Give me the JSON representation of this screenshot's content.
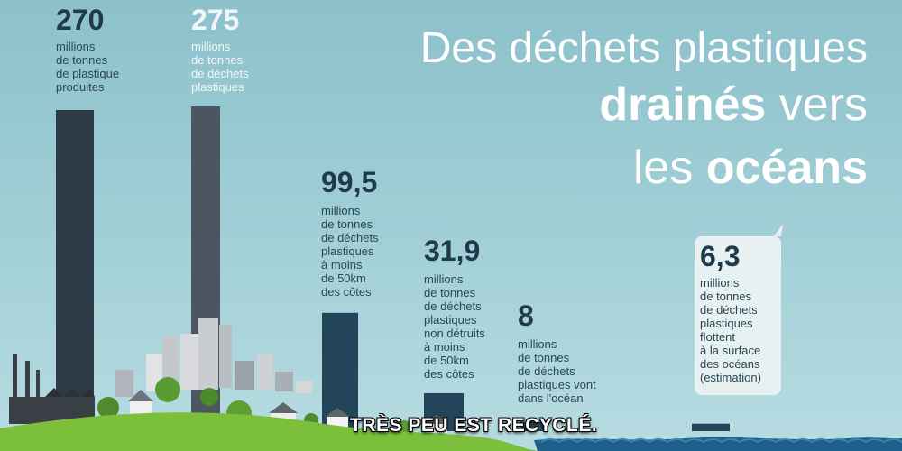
{
  "title": {
    "line1": "Des déchets plastiques",
    "line2_bold": "drainés",
    "line2_rest": " vers",
    "line3_rest": "les ",
    "line3_bold": "océans"
  },
  "caption": "TRÈS PEU EST RECYCLÉ.",
  "colors": {
    "sky_top": "#8fc3cc",
    "sky_bottom": "#b5dbe0",
    "bar_dark": "#2e3a45",
    "bar_mid": "#4b5660",
    "bar_navy": "#234559",
    "ocean": "#1e5f8c",
    "grass": "#7bbf3a"
  },
  "chart_data": {
    "type": "bar",
    "unit": "millions de tonnes",
    "values": [
      270,
      275,
      99.5,
      31.9,
      8,
      6.3
    ],
    "labels": [
      {
        "value": "270",
        "desc": "millions\nde tonnes\nde plastique\nproduites"
      },
      {
        "value": "275",
        "desc": "millions\nde tonnes\nde déchets\nplastiques"
      },
      {
        "value": "99,5",
        "desc": "millions\nde tonnes\nde déchets\nplastiques\nà moins\nde 50km\ndes côtes"
      },
      {
        "value": "31,9",
        "desc": "millions\nde tonnes\nde déchets\nplastiques\nnon détruits\nà moins\nde 50km\ndes côtes"
      },
      {
        "value": "8",
        "desc": "millions\nde tonnes\nde déchets\nplastiques vont\ndans l'océan"
      },
      {
        "value": "6,3",
        "desc": "millions\nde tonnes\nde déchets\nplastiques\nflottent\nà la surface\ndes océans\n(estimation)"
      }
    ]
  }
}
